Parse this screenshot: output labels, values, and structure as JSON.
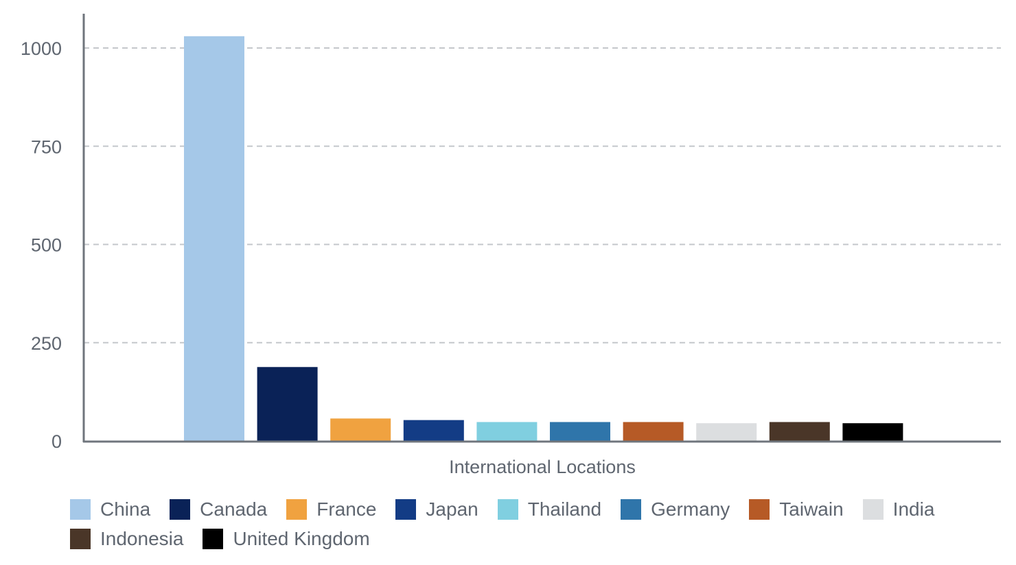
{
  "chart_data": {
    "type": "bar",
    "title": "",
    "xlabel": "International Locations",
    "ylabel": "",
    "ylim": [
      0,
      1000
    ],
    "yticks": [
      0,
      250,
      500,
      750,
      1000
    ],
    "grid": true,
    "legend_position": "bottom",
    "series": [
      {
        "name": "China",
        "value": 1030,
        "color": "#a5c8e8"
      },
      {
        "name": "Canada",
        "value": 188,
        "color": "#0a2257"
      },
      {
        "name": "France",
        "value": 57,
        "color": "#f0a240"
      },
      {
        "name": "Japan",
        "value": 53,
        "color": "#133c85"
      },
      {
        "name": "Thailand",
        "value": 48,
        "color": "#80cfe0"
      },
      {
        "name": "Germany",
        "value": 48,
        "color": "#2f75aa"
      },
      {
        "name": "Taiwain",
        "value": 48,
        "color": "#b65a26"
      },
      {
        "name": "India",
        "value": 45,
        "color": "#dcdee0"
      },
      {
        "name": "Indonesia",
        "value": 48,
        "color": "#4a3628"
      },
      {
        "name": "United Kingdom",
        "value": 45,
        "color": "#000000"
      }
    ]
  }
}
